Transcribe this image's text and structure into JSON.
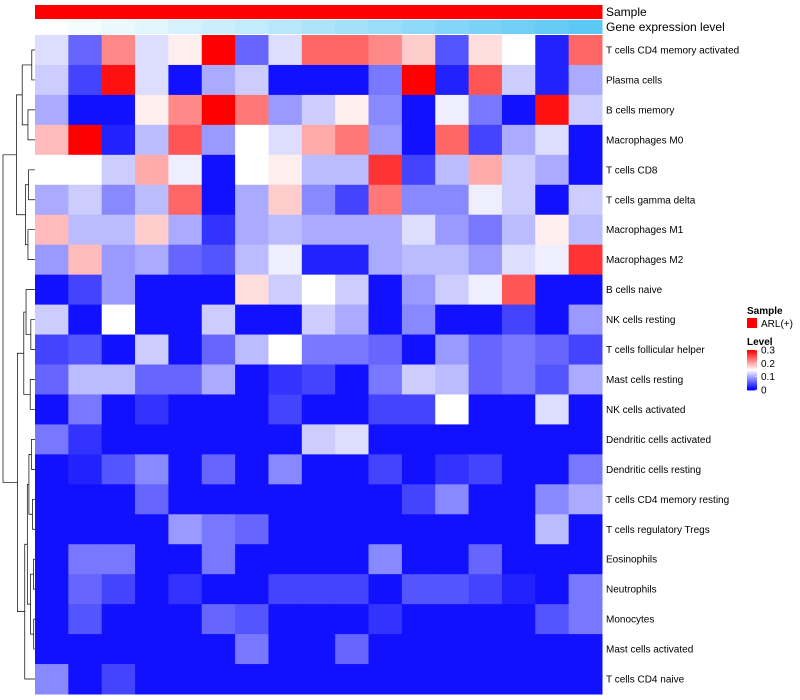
{
  "chart_data": {
    "type": "heatmap",
    "title": "",
    "rows": [
      "T cells CD4 memory activated",
      "Plasma cells",
      "B cells memory",
      "Macrophages M0",
      "T cells CD8",
      "T cells gamma delta",
      "Macrophages M1",
      "Macrophages M2",
      "B cells naive",
      "NK cells resting",
      "T cells follicular helper",
      "Mast cells resting",
      "NK cells activated",
      "Dendritic cells activated",
      "Dendritic cells resting",
      "T cells CD4 memory resting",
      "T cells regulatory  Tregs",
      "Eosinophils",
      "Neutrophils",
      "Monocytes",
      "Mast cells activated",
      "T cells CD4 naive"
    ],
    "values": [
      [
        0.13,
        0.06,
        0.22,
        0.13,
        0.16,
        0.3,
        0.06,
        0.13,
        0.24,
        0.24,
        0.22,
        0.18,
        0.05,
        0.17,
        0.15,
        0.02,
        0.24
      ],
      [
        0.12,
        0.04,
        0.29,
        0.13,
        0.01,
        0.1,
        0.12,
        0.01,
        0.01,
        0.01,
        0.07,
        0.3,
        0.02,
        0.25,
        0.12,
        0.02,
        0.1
      ],
      [
        0.1,
        0.01,
        0.01,
        0.16,
        0.22,
        0.3,
        0.23,
        0.09,
        0.12,
        0.16,
        0.08,
        0.01,
        0.14,
        0.07,
        0.01,
        0.29,
        0.12
      ],
      [
        0.19,
        0.3,
        0.02,
        0.11,
        0.25,
        0.09,
        0.15,
        0.13,
        0.2,
        0.23,
        0.09,
        0.01,
        0.24,
        0.04,
        0.1,
        0.13,
        0.01
      ],
      [
        0.15,
        0.15,
        0.12,
        0.2,
        0.14,
        0.01,
        0.15,
        0.16,
        0.11,
        0.11,
        0.27,
        0.04,
        0.11,
        0.2,
        0.12,
        0.1,
        0.01
      ],
      [
        0.1,
        0.12,
        0.08,
        0.11,
        0.24,
        0.01,
        0.1,
        0.18,
        0.08,
        0.04,
        0.23,
        0.08,
        0.08,
        0.14,
        0.12,
        0.01,
        0.12
      ],
      [
        0.19,
        0.11,
        0.11,
        0.18,
        0.1,
        0.03,
        0.1,
        0.11,
        0.1,
        0.1,
        0.1,
        0.13,
        0.09,
        0.07,
        0.11,
        0.16,
        0.11
      ],
      [
        0.09,
        0.19,
        0.09,
        0.1,
        0.06,
        0.05,
        0.11,
        0.14,
        0.02,
        0.02,
        0.1,
        0.11,
        0.11,
        0.09,
        0.13,
        0.14,
        0.27
      ],
      [
        0.01,
        0.04,
        0.09,
        0.01,
        0.01,
        0.01,
        0.17,
        0.12,
        0.15,
        0.12,
        0.01,
        0.09,
        0.12,
        0.14,
        0.25,
        0.01,
        0.01
      ],
      [
        0.12,
        0.01,
        0.15,
        0.01,
        0.01,
        0.12,
        0.01,
        0.01,
        0.12,
        0.1,
        0.01,
        0.08,
        0.01,
        0.01,
        0.04,
        0.01,
        0.09
      ],
      [
        0.04,
        0.05,
        0.01,
        0.12,
        0.01,
        0.06,
        0.11,
        0.15,
        0.07,
        0.07,
        0.06,
        0.01,
        0.09,
        0.06,
        0.07,
        0.06,
        0.04
      ],
      [
        0.06,
        0.11,
        0.11,
        0.06,
        0.06,
        0.1,
        0.01,
        0.03,
        0.04,
        0.01,
        0.07,
        0.12,
        0.11,
        0.06,
        0.07,
        0.05,
        0.1
      ],
      [
        0.01,
        0.07,
        0.01,
        0.03,
        0.01,
        0.01,
        0.01,
        0.04,
        0.01,
        0.01,
        0.04,
        0.04,
        0.15,
        0.01,
        0.01,
        0.13,
        0.01
      ],
      [
        0.07,
        0.03,
        0.01,
        0.01,
        0.01,
        0.01,
        0.01,
        0.01,
        0.12,
        0.13,
        0.01,
        0.01,
        0.01,
        0.01,
        0.01,
        0.01,
        0.01
      ],
      [
        0.01,
        0.02,
        0.05,
        0.08,
        0.01,
        0.06,
        0.01,
        0.08,
        0.01,
        0.01,
        0.04,
        0.01,
        0.03,
        0.04,
        0.01,
        0.01,
        0.07
      ],
      [
        0.01,
        0.01,
        0.01,
        0.06,
        0.01,
        0.01,
        0.01,
        0.01,
        0.01,
        0.01,
        0.01,
        0.04,
        0.08,
        0.01,
        0.01,
        0.08,
        0.1
      ],
      [
        0.01,
        0.01,
        0.01,
        0.01,
        0.09,
        0.07,
        0.06,
        0.01,
        0.01,
        0.01,
        0.01,
        0.01,
        0.01,
        0.01,
        0.01,
        0.11,
        0.01
      ],
      [
        0.01,
        0.07,
        0.07,
        0.01,
        0.01,
        0.07,
        0.01,
        0.01,
        0.01,
        0.01,
        0.08,
        0.01,
        0.01,
        0.06,
        0.01,
        0.01,
        0.01
      ],
      [
        0.01,
        0.06,
        0.04,
        0.01,
        0.03,
        0.01,
        0.01,
        0.04,
        0.04,
        0.04,
        0.01,
        0.05,
        0.05,
        0.04,
        0.02,
        0.01,
        0.07
      ],
      [
        0.01,
        0.05,
        0.01,
        0.01,
        0.01,
        0.06,
        0.05,
        0.01,
        0.01,
        0.01,
        0.03,
        0.01,
        0.01,
        0.01,
        0.01,
        0.05,
        0.07
      ],
      [
        0.01,
        0.01,
        0.01,
        0.01,
        0.01,
        0.01,
        0.07,
        0.01,
        0.01,
        0.06,
        0.01,
        0.01,
        0.01,
        0.01,
        0.01,
        0.01,
        0.01
      ],
      [
        0.08,
        0.01,
        0.04,
        0.01,
        0.01,
        0.01,
        0.01,
        0.01,
        0.01,
        0.01,
        0.01,
        0.01,
        0.01,
        0.01,
        0.01,
        0.01,
        0.01
      ]
    ],
    "column_annotations": [
      {
        "name": "Sample",
        "values": [
          "ARL(+)",
          "ARL(+)",
          "ARL(+)",
          "ARL(+)",
          "ARL(+)",
          "ARL(+)",
          "ARL(+)",
          "ARL(+)",
          "ARL(+)",
          "ARL(+)",
          "ARL(+)",
          "ARL(+)",
          "ARL(+)",
          "ARL(+)",
          "ARL(+)",
          "ARL(+)",
          "ARL(+)"
        ],
        "color": "#ff0000"
      },
      {
        "name": "Gene expression level",
        "values": [
          0.0,
          0.06,
          0.12,
          0.18,
          0.25,
          0.31,
          0.37,
          0.43,
          0.5,
          0.56,
          0.62,
          0.68,
          0.75,
          0.81,
          0.87,
          0.93,
          1.0
        ],
        "color_low": "#ffffff",
        "color_high": "#5bc8f5"
      }
    ],
    "legend": {
      "sample": {
        "title": "Sample",
        "entries": [
          {
            "label": "ARL(+)",
            "color": "#ff0000"
          }
        ]
      },
      "level": {
        "title": "Level",
        "ticks": [
          {
            "value": 0.3,
            "label": "0.3"
          },
          {
            "value": 0.2,
            "label": "0.2"
          },
          {
            "value": 0.1,
            "label": "0.1"
          },
          {
            "value": 0.0,
            "label": "0"
          }
        ],
        "range": [
          0,
          0.3
        ]
      }
    },
    "color_scale": {
      "low": "#0000ff",
      "mid": "#ffffff",
      "high": "#ff0000",
      "range": [
        0,
        0.3
      ],
      "midpoint": 0.15
    },
    "row_dendrogram": {
      "order": [
        0,
        1,
        2,
        3,
        4,
        5,
        6,
        7,
        8,
        9,
        10,
        11,
        12,
        13,
        14,
        15,
        16,
        17,
        18,
        19,
        20,
        21
      ],
      "merges": [
        {
          "left": 0,
          "right": 1,
          "height": 0.1
        },
        {
          "left": 2,
          "right": 3,
          "height": 0.22
        },
        {
          "left": 4,
          "right": 5,
          "height": 0.2
        },
        {
          "left": 6,
          "right": 7,
          "height": 0.22
        },
        {
          "left": 9,
          "right": 10,
          "height": 0.13
        },
        {
          "left": 11,
          "right": 12,
          "height": 0.15
        },
        {
          "left": 13,
          "right": 14,
          "height": 0.11
        },
        {
          "left": 15,
          "right": 16,
          "height": 0.08
        },
        {
          "left": 17,
          "right": 18,
          "height": 0.05
        },
        {
          "left": 19,
          "right": 20,
          "height": 0.04
        },
        {
          "left": "m0",
          "right": "m1",
          "height": 0.4
        },
        {
          "left": "m2",
          "right": "m3",
          "height": 0.3
        },
        {
          "left": "m10",
          "right": "m11",
          "height": 0.58
        },
        {
          "left": 8,
          "right": "m4",
          "height": 0.28
        },
        {
          "left": "m13",
          "right": "m5",
          "height": 0.35
        },
        {
          "left": "m6",
          "right": "m7",
          "height": 0.19
        },
        {
          "left": "m8",
          "right": "m9",
          "height": 0.14
        },
        {
          "left": "m15",
          "right": "m16",
          "height": 0.24
        },
        {
          "left": "m17",
          "right": 21,
          "height": 0.32
        },
        {
          "left": "m14",
          "right": "m18",
          "height": 0.55
        },
        {
          "left": "m12",
          "right": "m19",
          "height": 1.0
        }
      ]
    }
  }
}
